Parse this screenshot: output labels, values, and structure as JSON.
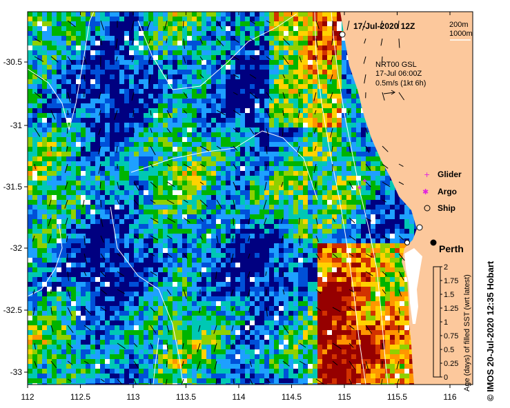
{
  "map": {
    "date": "17-Jul-2020 12Z",
    "depth_legend": [
      "200m",
      "1000m"
    ],
    "current_legend": [
      "NRT00 GSL",
      "17-Jul 06:00Z",
      "0.5m/s (1kt 6h)"
    ],
    "city": "Perth",
    "lon_ticks": [
      "112",
      "112.5",
      "113",
      "113.5",
      "114",
      "114.5",
      "115",
      "115.5",
      "116"
    ],
    "lat_ticks": [
      "-30.5",
      "-31",
      "-31.5",
      "-32",
      "-32.5",
      "-33"
    ],
    "markers": [
      {
        "label": "Glider",
        "symbol": "+",
        "color": "#e020e0"
      },
      {
        "label": "Argo",
        "symbol": "✱",
        "color": "#e020e0"
      },
      {
        "label": "Ship",
        "symbol": "○",
        "color": "#000000"
      }
    ],
    "colorbar": {
      "title": "Age (days) of filled SST (wrt latest)",
      "ticks": [
        "0",
        "0.25",
        "0.5",
        "0.75",
        "1",
        "1.25",
        "1.5",
        "1.75",
        "2"
      ],
      "colors": [
        "#000080",
        "#0050d8",
        "#1ea0ff",
        "#00c8b4",
        "#00b400",
        "#90d000",
        "#ffd200",
        "#ff9600",
        "#d23200",
        "#960000"
      ]
    },
    "land_color": "#fcc89c",
    "credit": "© IMOS 20-Jul-2020 12:35 Hobart"
  }
}
